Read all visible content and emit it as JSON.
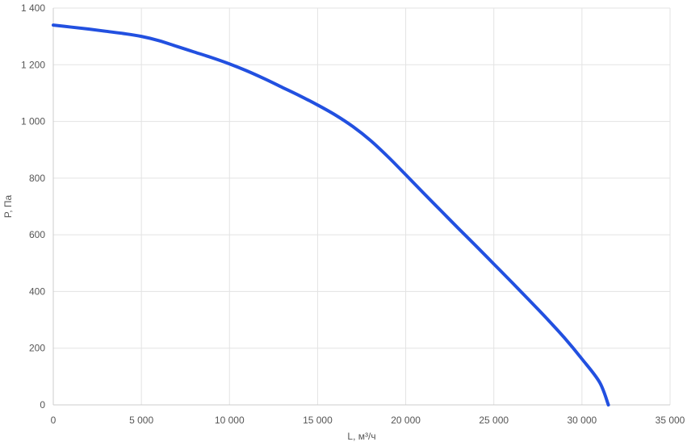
{
  "chart_data": {
    "type": "line",
    "xlabel": "L, м³/ч",
    "ylabel": "P, Па",
    "xlim": [
      0,
      35000
    ],
    "ylim": [
      0,
      1400
    ],
    "x_ticks": [
      0,
      5000,
      10000,
      15000,
      20000,
      25000,
      30000,
      35000
    ],
    "x_tick_labels": [
      "0",
      "5 000",
      "10 000",
      "15 000",
      "20 000",
      "25 000",
      "30 000",
      "35 000"
    ],
    "y_ticks": [
      0,
      200,
      400,
      600,
      800,
      1000,
      1200,
      1400
    ],
    "y_tick_labels": [
      "0",
      "200",
      "400",
      "600",
      "800",
      "1 000",
      "1 200",
      "1 400"
    ],
    "grid": true,
    "series": [
      {
        "color": "#2250e0",
        "x": [
          0,
          1000,
          2000,
          3000,
          4000,
          5000,
          6000,
          7000,
          8000,
          9000,
          10000,
          11000,
          12000,
          13000,
          14000,
          15000,
          16000,
          17000,
          18000,
          19000,
          20000,
          21000,
          22000,
          23000,
          24000,
          25000,
          26000,
          27000,
          28000,
          29000,
          30000,
          31000,
          31500
        ],
        "y": [
          1340,
          1333,
          1326,
          1318,
          1310,
          1300,
          1285,
          1265,
          1245,
          1225,
          1203,
          1178,
          1150,
          1120,
          1090,
          1058,
          1023,
          982,
          933,
          875,
          812,
          748,
          685,
          622,
          560,
          497,
          434,
          370,
          305,
          237,
          162,
          80,
          0
        ]
      }
    ]
  }
}
